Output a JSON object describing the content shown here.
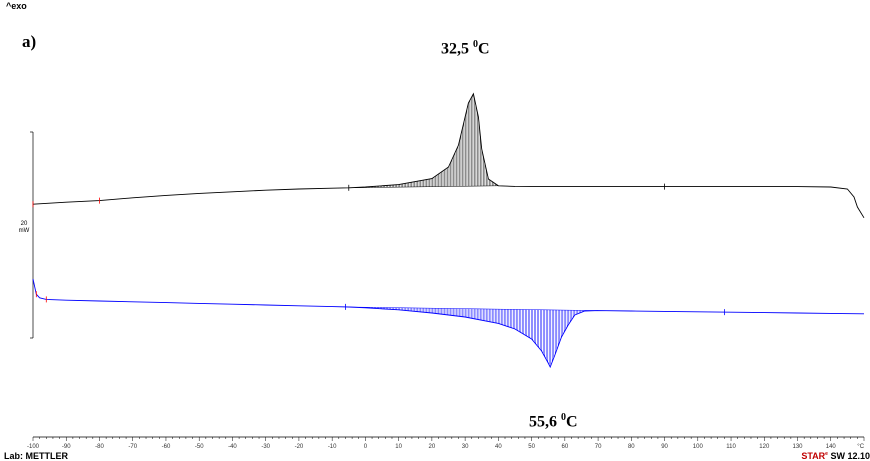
{
  "header": {
    "exo_label": "^exo"
  },
  "chart_data": {
    "type": "line",
    "panel_label": "a)",
    "xlabel": "°C",
    "xlim": [
      -100,
      150
    ],
    "x_ticks": [
      -100,
      -90,
      -80,
      -70,
      -60,
      -50,
      -40,
      -30,
      -20,
      -10,
      0,
      10,
      20,
      30,
      40,
      50,
      60,
      70,
      80,
      90,
      100,
      110,
      120,
      130,
      140
    ],
    "scale_bar": {
      "value": "20",
      "unit": "mW"
    },
    "grid": false,
    "colors": {
      "heating": "#000000",
      "cooling": "#0000ff",
      "marker": "#ff0000"
    },
    "series": [
      {
        "peak_value": "32,5",
        "peak_unit": "C",
        "peak_superscript": "0",
        "x": [
          -100,
          -90,
          -80,
          -70,
          -60,
          -50,
          -40,
          -30,
          -20,
          -10,
          -5,
          0,
          10,
          20,
          25,
          28,
          30,
          31,
          32.5,
          34,
          35,
          37,
          40,
          45,
          50,
          60,
          70,
          80,
          90,
          100,
          110,
          120,
          130,
          140,
          145,
          147,
          148,
          150
        ],
        "y": [
          6.2,
          6.7,
          7.1,
          7.8,
          8.4,
          8.9,
          9.3,
          9.7,
          10.0,
          10.2,
          10.3,
          10.5,
          11.1,
          12.6,
          15.5,
          21.0,
          28.0,
          31.5,
          33.8,
          28.0,
          20.0,
          12.5,
          10.8,
          10.65,
          10.6,
          10.6,
          10.6,
          10.6,
          10.6,
          10.6,
          10.6,
          10.6,
          10.6,
          10.5,
          10.0,
          8.0,
          5.5,
          2.8
        ]
      },
      {
        "peak_value": "55,6",
        "peak_unit": "C",
        "peak_superscript": "0",
        "x": [
          -100,
          -99,
          -98,
          -96,
          -90,
          -80,
          -70,
          -60,
          -50,
          -40,
          -30,
          -20,
          -10,
          -5,
          0,
          10,
          20,
          30,
          40,
          45,
          50,
          53,
          55,
          55.6,
          57,
          59,
          61,
          63,
          66,
          70,
          80,
          90,
          100,
          110,
          120,
          130,
          140,
          150
        ],
        "y": [
          -12.5,
          -16.3,
          -17.2,
          -17.6,
          -17.8,
          -18.0,
          -18.2,
          -18.4,
          -18.6,
          -18.8,
          -19.0,
          -19.2,
          -19.4,
          -19.5,
          -19.7,
          -20.2,
          -21.0,
          -22.0,
          -23.6,
          -25.0,
          -27.5,
          -30.5,
          -33.5,
          -34.5,
          -31.5,
          -27.0,
          -24.0,
          -21.5,
          -20.5,
          -20.4,
          -20.5,
          -20.6,
          -20.7,
          -20.8,
          -20.9,
          -21.0,
          -21.1,
          -21.2
        ]
      }
    ]
  },
  "footer": {
    "lab": "Lab: METTLER",
    "brand": "STAR",
    "brand_mark": "e",
    "software": "SW 12.10"
  }
}
